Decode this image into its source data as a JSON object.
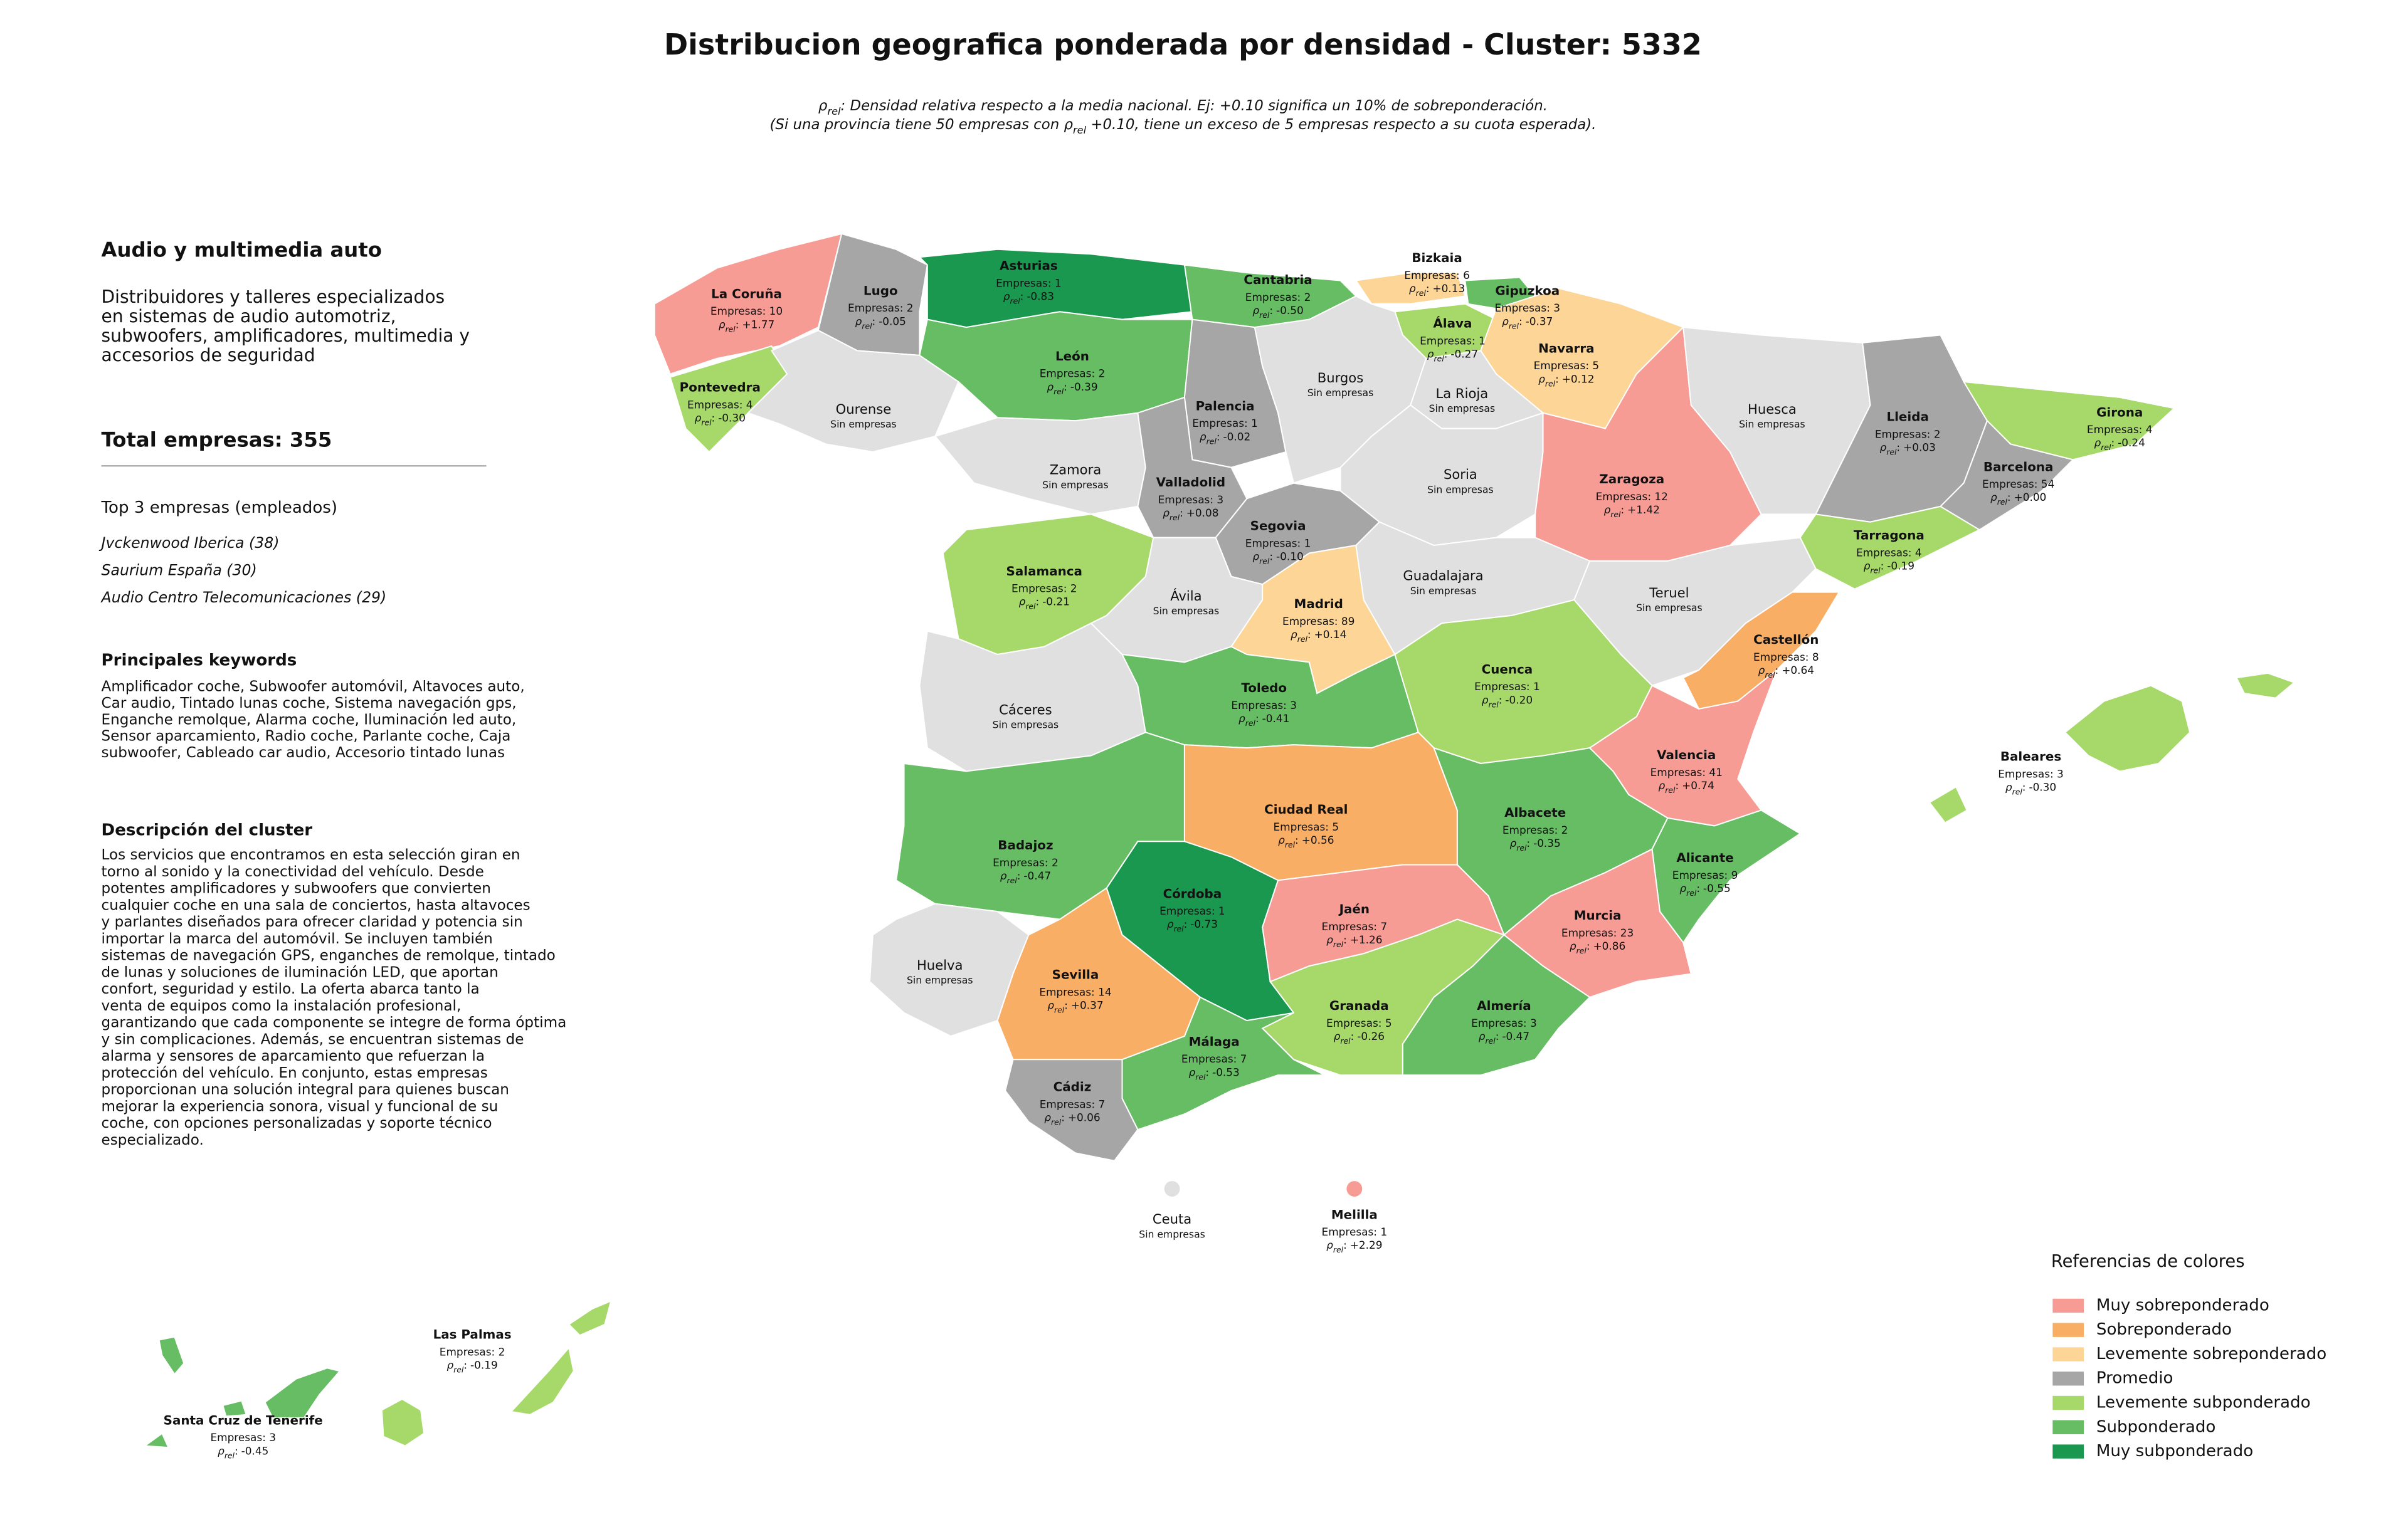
{
  "title": "Distribucion geografica ponderada por densidad - Cluster: 5332",
  "subtitle": [
    [
      "ρ",
      "rel",
      ": Densidad relativa respecto a la media nacional. Ej: +0.10 significa un 10% de sobreponderación."
    ],
    [
      "(Si una provincia tiene 50 empresas con ρ",
      "rel",
      " +0.10, tiene un exceso de 5 empresas respecto a su cuota esperada)."
    ]
  ],
  "sidebar": {
    "heading": "Audio y multimedia auto",
    "description": [
      "Distribuidores y talleres especializados",
      "en sistemas de audio automotriz,",
      "subwoofers, amplificadores, multimedia y",
      "accesorios de seguridad"
    ],
    "total": "Total empresas: 355",
    "top_heading": "Top 3 empresas (empleados)",
    "top": [
      "Jvckenwood Iberica (38)",
      "Saurium España (30)",
      "Audio Centro Telecomunicaciones (29)"
    ],
    "keywords_heading": "Principales keywords",
    "keywords": [
      "Amplificador coche, Subwoofer automóvil, Altavoces auto,",
      "Car audio, Tintado lunas coche, Sistema navegación gps,",
      "Enganche remolque, Alarma coche, Iluminación led auto,",
      "Sensor aparcamiento, Radio coche, Parlante coche, Caja",
      "subwoofer, Cableado car audio, Accesorio tintado lunas"
    ],
    "cluster_heading": "Descripción del cluster",
    "cluster_text": [
      "Los servicios que encontramos en esta selección giran en",
      "torno al sonido y la conectividad del vehículo. Desde",
      "potentes amplificadores y subwoofers que convierten",
      "cualquier coche en una sala de conciertos, hasta altavoces",
      "y parlantes diseñados para ofrecer claridad y potencia sin",
      "importar la marca del automóvil. Se incluyen también",
      "sistemas de navegación GPS, enganches de remolque, tintado",
      "de lunas y soluciones de iluminación LED, que aportan",
      "confort, seguridad y estilo. La oferta abarca tanto la",
      "venta de equipos como la instalación profesional,",
      "garantizando que cada componente se integre de forma óptima",
      "y sin complicaciones. Además, se encuentran sistemas de",
      "alarma y sensores de aparcamiento que refuerzan la",
      "protección del vehículo. En conjunto, estas empresas",
      "proporcionan una solución integral para quienes buscan",
      "mejorar la experiencia sonora, visual y funcional de su",
      "coche, con opciones personalizadas y soporte técnico",
      "especializado."
    ]
  },
  "map": {
    "rho_label": [
      "ρ",
      "rel",
      ":"
    ],
    "no_data_color": "#e0e0e0",
    "provinces": [
      {
        "name": "La Coruña",
        "empresas": "Empresas: 10",
        "rho": "+1.77",
        "level": "Muy sobreponderado"
      },
      {
        "name": "Lugo",
        "empresas": "Empresas: 2",
        "rho": "-0.05",
        "level": "Promedio"
      },
      {
        "name": "Asturias",
        "empresas": "Empresas: 1",
        "rho": "-0.83",
        "level": "Muy subponderado"
      },
      {
        "name": "Cantabria",
        "empresas": "Empresas: 2",
        "rho": "-0.50",
        "level": "Subponderado"
      },
      {
        "name": "Bizkaia",
        "empresas": "Empresas: 6",
        "rho": "+0.13",
        "level": "Levemente sobreponderado"
      },
      {
        "name": "Gipuzkoa",
        "empresas": "Empresas: 3",
        "rho": "-0.37",
        "level": "Subponderado"
      },
      {
        "name": "Álava",
        "empresas": "Empresas: 1",
        "rho": "-0.27",
        "level": "Levemente subponderado"
      },
      {
        "name": "Navarra",
        "empresas": "Empresas: 5",
        "rho": "+0.12",
        "level": "Levemente sobreponderado"
      },
      {
        "name": "Pontevedra",
        "empresas": "Empresas: 4",
        "rho": "-0.30",
        "level": "Levemente subponderado"
      },
      {
        "name": "Ourense",
        "note": "Sin empresas"
      },
      {
        "name": "León",
        "empresas": "Empresas: 2",
        "rho": "-0.39",
        "level": "Subponderado"
      },
      {
        "name": "Palencia",
        "empresas": "Empresas: 1",
        "rho": "-0.02",
        "level": "Promedio"
      },
      {
        "name": "Burgos",
        "note": "Sin empresas"
      },
      {
        "name": "La Rioja",
        "note": "Sin empresas"
      },
      {
        "name": "Zamora",
        "note": "Sin empresas"
      },
      {
        "name": "Valladolid",
        "empresas": "Empresas: 3",
        "rho": "+0.08",
        "level": "Promedio"
      },
      {
        "name": "Soria",
        "note": "Sin empresas"
      },
      {
        "name": "Zaragoza",
        "empresas": "Empresas: 12",
        "rho": "+1.42",
        "level": "Muy sobreponderado"
      },
      {
        "name": "Huesca",
        "note": "Sin empresas"
      },
      {
        "name": "Lleida",
        "empresas": "Empresas: 2",
        "rho": "+0.03",
        "level": "Promedio"
      },
      {
        "name": "Girona",
        "empresas": "Empresas: 4",
        "rho": "-0.24",
        "level": "Levemente subponderado"
      },
      {
        "name": "Barcelona",
        "empresas": "Empresas: 54",
        "rho": "+0.00",
        "level": "Promedio"
      },
      {
        "name": "Tarragona",
        "empresas": "Empresas: 4",
        "rho": "-0.19",
        "level": "Levemente subponderado"
      },
      {
        "name": "Salamanca",
        "empresas": "Empresas: 2",
        "rho": "-0.21",
        "level": "Levemente subponderado"
      },
      {
        "name": "Segovia",
        "empresas": "Empresas: 1",
        "rho": "-0.10",
        "level": "Promedio"
      },
      {
        "name": "Ávila",
        "note": "Sin empresas"
      },
      {
        "name": "Madrid",
        "empresas": "Empresas: 89",
        "rho": "+0.14",
        "level": "Levemente sobreponderado"
      },
      {
        "name": "Guadalajara",
        "note": "Sin empresas"
      },
      {
        "name": "Teruel",
        "note": "Sin empresas"
      },
      {
        "name": "Castellón",
        "empresas": "Empresas: 8",
        "rho": "+0.64",
        "level": "Sobreponderado"
      },
      {
        "name": "Cáceres",
        "note": "Sin empresas"
      },
      {
        "name": "Toledo",
        "empresas": "Empresas: 3",
        "rho": "-0.41",
        "level": "Subponderado"
      },
      {
        "name": "Cuenca",
        "empresas": "Empresas: 1",
        "rho": "-0.20",
        "level": "Levemente subponderado"
      },
      {
        "name": "Valencia",
        "empresas": "Empresas: 41",
        "rho": "+0.74",
        "level": "Muy sobreponderado"
      },
      {
        "name": "Badajoz",
        "empresas": "Empresas: 2",
        "rho": "-0.47",
        "level": "Subponderado"
      },
      {
        "name": "Ciudad Real",
        "empresas": "Empresas: 5",
        "rho": "+0.56",
        "level": "Sobreponderado"
      },
      {
        "name": "Albacete",
        "empresas": "Empresas: 2",
        "rho": "-0.35",
        "level": "Subponderado"
      },
      {
        "name": "Alicante",
        "empresas": "Empresas: 9",
        "rho": "-0.55",
        "level": "Subponderado"
      },
      {
        "name": "Murcia",
        "empresas": "Empresas: 23",
        "rho": "+0.86",
        "level": "Muy sobreponderado"
      },
      {
        "name": "Córdoba",
        "empresas": "Empresas: 1",
        "rho": "-0.73",
        "level": "Muy subponderado"
      },
      {
        "name": "Jaén",
        "empresas": "Empresas: 7",
        "rho": "+1.26",
        "level": "Muy sobreponderado"
      },
      {
        "name": "Huelva",
        "note": "Sin empresas"
      },
      {
        "name": "Sevilla",
        "empresas": "Empresas: 14",
        "rho": "+0.37",
        "level": "Sobreponderado"
      },
      {
        "name": "Granada",
        "empresas": "Empresas: 5",
        "rho": "-0.26",
        "level": "Levemente subponderado"
      },
      {
        "name": "Almería",
        "empresas": "Empresas: 3",
        "rho": "-0.47",
        "level": "Subponderado"
      },
      {
        "name": "Málaga",
        "empresas": "Empresas: 7",
        "rho": "-0.53",
        "level": "Subponderado"
      },
      {
        "name": "Cádiz",
        "empresas": "Empresas: 7",
        "rho": "+0.06",
        "level": "Promedio"
      },
      {
        "name": "Baleares",
        "empresas": "Empresas: 3",
        "rho": "-0.30",
        "level": "Levemente subponderado"
      },
      {
        "name": "Las Palmas",
        "empresas": "Empresas: 2",
        "rho": "-0.19",
        "level": "Levemente subponderado"
      },
      {
        "name": "Santa Cruz de Tenerife",
        "empresas": "Empresas: 3",
        "rho": "-0.45",
        "level": "Subponderado"
      },
      {
        "name": "Ceuta",
        "note": "Sin empresas"
      },
      {
        "name": "Melilla",
        "empresas": "Empresas: 1",
        "rho": "+2.29",
        "level": "Muy sobreponderado"
      }
    ]
  },
  "legend": {
    "title": "Referencias de colores",
    "items": [
      {
        "label": "Muy sobreponderado",
        "color": "#f79b95"
      },
      {
        "label": "Sobreponderado",
        "color": "#f9ae66"
      },
      {
        "label": "Levemente sobreponderado",
        "color": "#fdd597"
      },
      {
        "label": "Promedio",
        "color": "#a6a6a6"
      },
      {
        "label": "Levemente subponderado",
        "color": "#a6d96a"
      },
      {
        "label": "Subponderado",
        "color": "#66bd63"
      },
      {
        "label": "Muy subponderado",
        "color": "#1a9850"
      }
    ]
  }
}
